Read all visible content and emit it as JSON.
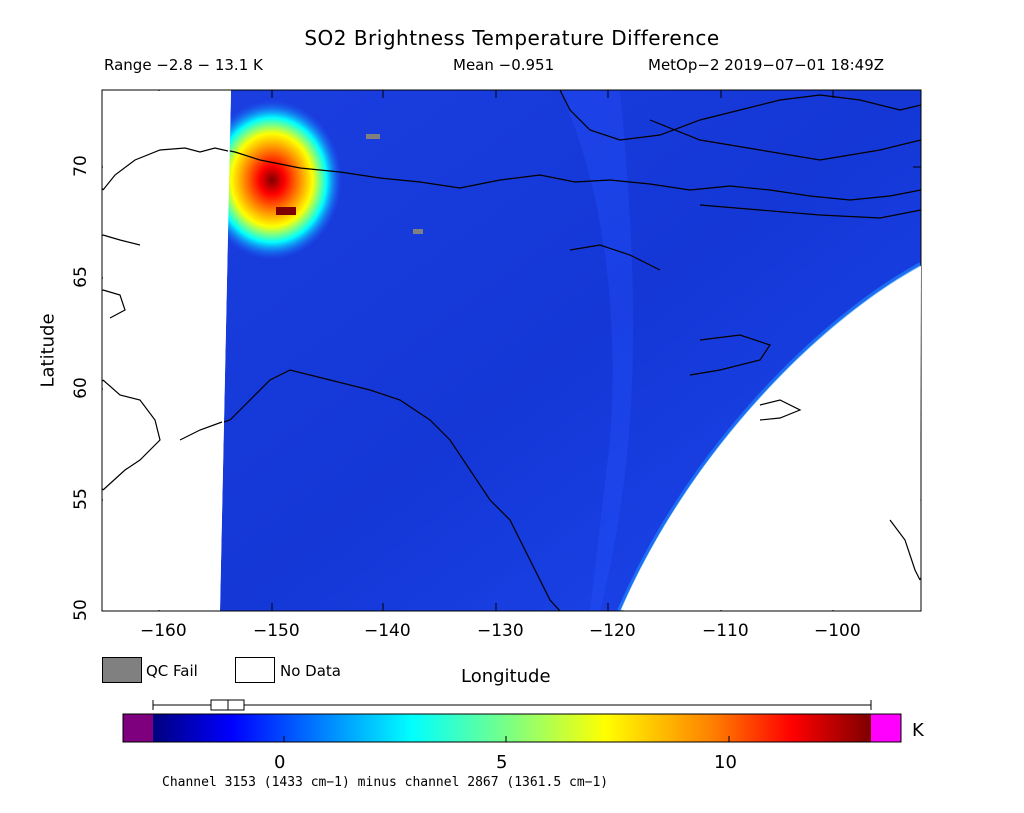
{
  "title": "SO2 Brightness Temperature Difference",
  "range_label": "Range −2.8 − 13.1 K",
  "mean_label": "Mean −0.951",
  "sat_label": "MetOp−2 2019−07−01 18:49Z",
  "axes": {
    "xlabel": "Longitude",
    "ylabel": "Latitude",
    "xticks": [
      "−160",
      "−150",
      "−140",
      "−130",
      "−120",
      "−110",
      "−100"
    ],
    "yticks": [
      "50",
      "55",
      "60",
      "65",
      "70"
    ],
    "xlim": [
      -163,
      -97.5
    ],
    "ylim": [
      50,
      73.5
    ]
  },
  "legend": {
    "qc_fail": "QC Fail",
    "no_data": "No Data",
    "qc_color": "#808080",
    "nodata_color": "#ffffff"
  },
  "colorbar": {
    "unit": "K",
    "ticks": [
      "0",
      "5",
      "10"
    ],
    "range": [
      -2.8,
      13.1
    ],
    "low_color": "#7f007f",
    "high_color": "#ff00ff",
    "box_range": [
      -1.5,
      -0.1
    ],
    "median": -0.9
  },
  "channel_note": "Channel 3153 (1433 cm−1) minus channel 2867 (1361.5 cm−1)",
  "chart_data": {
    "type": "heatmap",
    "background_value": -0.95,
    "hotspot": {
      "lon": -148,
      "lat": 69,
      "peak": 13.1
    },
    "colors": [
      "#00007f",
      "#0000ff",
      "#00ffff",
      "#7fff7f",
      "#ffff00",
      "#ff7f00",
      "#ff0000",
      "#7f0000"
    ]
  }
}
